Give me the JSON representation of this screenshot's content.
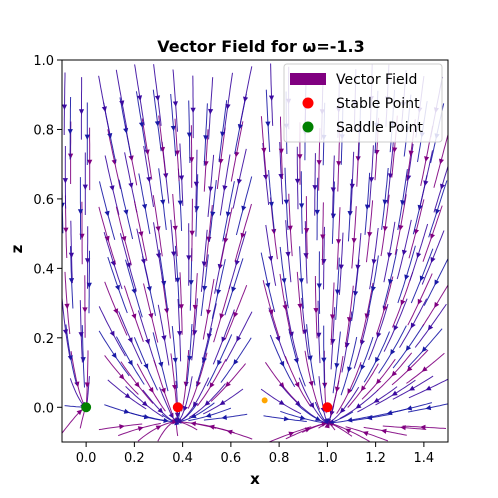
{
  "chart_data": {
    "type": "streamplot",
    "title": "Vector Field for ω=-1.3",
    "xlabel": "x",
    "ylabel": "z",
    "xlim": [
      -0.1,
      1.5
    ],
    "ylim": [
      -0.1,
      1.0
    ],
    "xticks": [
      0.0,
      0.2,
      0.4,
      0.6,
      0.8,
      1.0,
      1.2,
      1.4
    ],
    "yticks": [
      0.0,
      0.2,
      0.4,
      0.6,
      0.8,
      1.0
    ],
    "xtick_labels": [
      "0.0",
      "0.2",
      "0.4",
      "0.6",
      "0.8",
      "1.0",
      "1.2",
      "1.4"
    ],
    "ytick_labels": [
      "0.0",
      "0.2",
      "0.4",
      "0.6",
      "0.8",
      "1.0"
    ],
    "grid": false,
    "legend_position": "top-right",
    "legend": [
      {
        "label": "Vector Field",
        "marker": "patch",
        "color": "#800080"
      },
      {
        "label": "Stable Point",
        "marker": "circle",
        "color": "#ff0000"
      },
      {
        "label": "Saddle Point",
        "marker": "circle",
        "color": "#008000"
      }
    ],
    "stable_points": [
      {
        "x": 0.38,
        "z": 0.0
      },
      {
        "x": 1.0,
        "z": 0.0
      }
    ],
    "saddle_points": [
      {
        "x": 0.0,
        "z": 0.0
      }
    ],
    "unlabeled_points": [
      {
        "x": 0.74,
        "z": 0.02,
        "color": "#ffa500"
      }
    ],
    "field_colors": [
      "#800080",
      "#1a1aa6",
      "#3b0aa0"
    ]
  }
}
